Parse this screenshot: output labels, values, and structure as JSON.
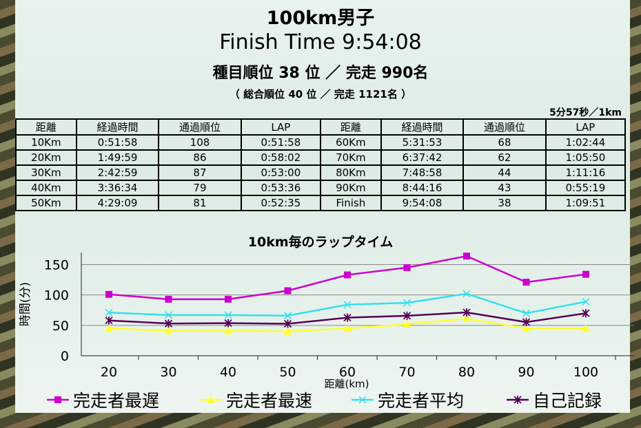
{
  "header": {
    "title": "100km男子",
    "finish": "Finish Time  9:54:08",
    "rank": "種目順位  38 位  ／  完走  990名",
    "overall": "（ 総合順位  40 位  ／  完走  1121名 ）",
    "pace": "5分57秒／1km"
  },
  "table": {
    "headers": [
      "距離",
      "経過時間",
      "通過順位",
      "LAP",
      "距離",
      "経過時間",
      "通過順位",
      "LAP"
    ],
    "rows": [
      [
        "10Km",
        "0:51:58",
        "108",
        "0:51:58",
        "60Km",
        "5:31:53",
        "68",
        "1:02:44"
      ],
      [
        "20Km",
        "1:49:59",
        "86",
        "0:58:02",
        "70Km",
        "6:37:42",
        "62",
        "1:05:50"
      ],
      [
        "30Km",
        "2:42:59",
        "87",
        "0:53:00",
        "80Km",
        "7:48:58",
        "44",
        "1:11:16"
      ],
      [
        "40Km",
        "3:36:34",
        "79",
        "0:53:36",
        "90Km",
        "8:44:16",
        "43",
        "0:55:19"
      ],
      [
        "50Km",
        "4:29:09",
        "81",
        "0:52:35",
        "Finish",
        "9:54:08",
        "38",
        "1:09:51"
      ]
    ]
  },
  "chart_data": {
    "type": "line",
    "title": "10km毎のラップタイム",
    "xlabel": "距離(km)",
    "ylabel": "時間(分)",
    "x": [
      20,
      30,
      40,
      50,
      60,
      70,
      80,
      90,
      100
    ],
    "ylim": [
      0,
      170
    ],
    "yticks": [
      0,
      50,
      100,
      150
    ],
    "grid": true,
    "legend": "bottom",
    "series": [
      {
        "name": "完走者最遅",
        "color": "#cc00cc",
        "marker": "square",
        "values": [
          101,
          93,
          93,
          107,
          133,
          145,
          164,
          121,
          134
        ]
      },
      {
        "name": "完走者最速",
        "color": "#ffff33",
        "marker": "triangle",
        "values": [
          45,
          41,
          41,
          40,
          45,
          52,
          61,
          45,
          45
        ]
      },
      {
        "name": "完走者平均",
        "color": "#33e0ee",
        "marker": "x",
        "values": [
          71,
          67,
          67,
          66,
          84,
          87,
          102,
          70,
          89
        ]
      },
      {
        "name": "自己記録",
        "color": "#550055",
        "marker": "star",
        "values": [
          58,
          53,
          53.6,
          52.6,
          62.7,
          65.8,
          71.3,
          55.3,
          69.9
        ]
      }
    ]
  }
}
